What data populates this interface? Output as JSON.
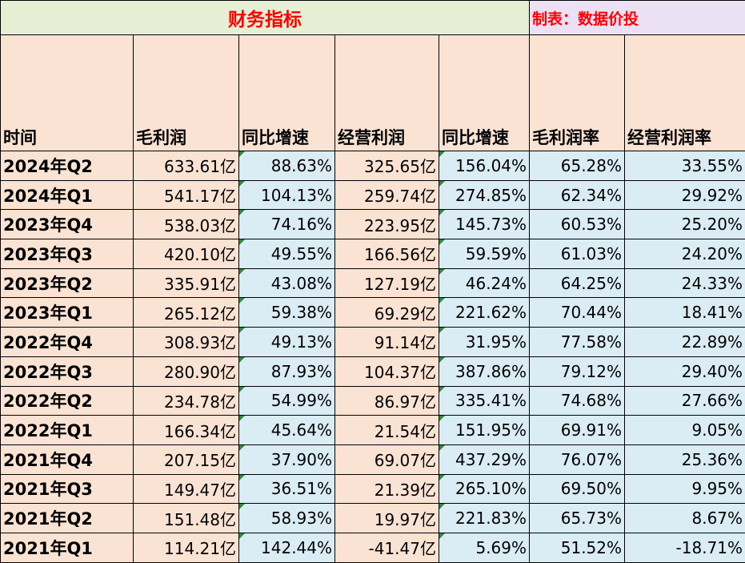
{
  "title": "财务指标",
  "author_note": "制表：数据价投",
  "headers": [
    "时间",
    "毛利润",
    "同比增速",
    "经营利润",
    "同比增速",
    "毛利润率",
    "经营利润率"
  ],
  "rows": [
    [
      "2024年Q2",
      "633.61亿",
      "88.63%",
      "325.65亿",
      "156.04%",
      "65.28%",
      "33.55%"
    ],
    [
      "2024年Q1",
      "541.17亿",
      "104.13%",
      "259.74亿",
      "274.85%",
      "62.34%",
      "29.92%"
    ],
    [
      "2023年Q4",
      "538.03亿",
      "74.16%",
      "223.95亿",
      "145.73%",
      "60.53%",
      "25.20%"
    ],
    [
      "2023年Q3",
      "420.10亿",
      "49.55%",
      "166.56亿",
      "59.59%",
      "61.03%",
      "24.20%"
    ],
    [
      "2023年Q2",
      "335.91亿",
      "43.08%",
      "127.19亿",
      "46.24%",
      "64.25%",
      "24.33%"
    ],
    [
      "2023年Q1",
      "265.12亿",
      "59.38%",
      "69.29亿",
      "221.62%",
      "70.44%",
      "18.41%"
    ],
    [
      "2022年Q4",
      "308.93亿",
      "49.13%",
      "91.14亿",
      "31.95%",
      "77.58%",
      "22.89%"
    ],
    [
      "2022年Q3",
      "280.90亿",
      "87.93%",
      "104.37亿",
      "387.86%",
      "79.12%",
      "29.40%"
    ],
    [
      "2022年Q2",
      "234.78亿",
      "54.99%",
      "86.97亿",
      "335.41%",
      "74.68%",
      "27.66%"
    ],
    [
      "2022年Q1",
      "166.34亿",
      "45.64%",
      "21.54亿",
      "151.95%",
      "69.91%",
      "9.05%"
    ],
    [
      "2021年Q4",
      "207.15亿",
      "37.90%",
      "69.07亿",
      "437.29%",
      "76.07%",
      "25.36%"
    ],
    [
      "2021年Q3",
      "149.47亿",
      "36.51%",
      "21.39亿",
      "265.10%",
      "69.50%",
      "9.95%"
    ],
    [
      "2021年Q2",
      "151.48亿",
      "58.93%",
      "19.97亿",
      "221.83%",
      "65.73%",
      "8.67%"
    ],
    [
      "2021年Q1",
      "114.21亿",
      "142.44%",
      "-41.47亿",
      "5.69%",
      "51.52%",
      "-18.71%"
    ]
  ],
  "colors": {
    "title_text": "#ff0000",
    "title_left_bg": "#e6eed4",
    "title_right_bg": "#ece0f4",
    "peach_bg": "#fbe3d3",
    "blue_bg": "#dbedf4",
    "flag": "#2e8b3a"
  }
}
